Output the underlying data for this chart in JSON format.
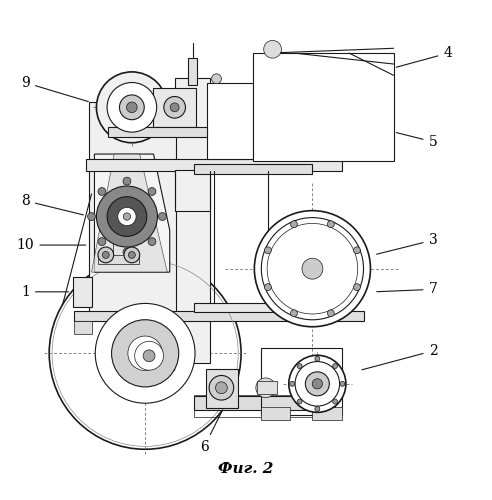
{
  "title": "Фиг. 2",
  "background_color": "#ffffff",
  "line_color": "#000000",
  "figsize": [
    4.92,
    5.0
  ],
  "dpi": 100,
  "labels_data": [
    [
      1,
      0.052,
      0.415,
      0.145,
      0.415
    ],
    [
      2,
      0.88,
      0.295,
      0.73,
      0.255
    ],
    [
      3,
      0.88,
      0.52,
      0.76,
      0.49
    ],
    [
      4,
      0.91,
      0.9,
      0.8,
      0.87
    ],
    [
      5,
      0.88,
      0.72,
      0.8,
      0.74
    ],
    [
      6,
      0.415,
      0.1,
      0.455,
      0.18
    ],
    [
      7,
      0.88,
      0.42,
      0.76,
      0.415
    ],
    [
      8,
      0.052,
      0.6,
      0.175,
      0.57
    ],
    [
      9,
      0.052,
      0.84,
      0.185,
      0.8
    ],
    [
      10,
      0.052,
      0.51,
      0.18,
      0.51
    ]
  ]
}
